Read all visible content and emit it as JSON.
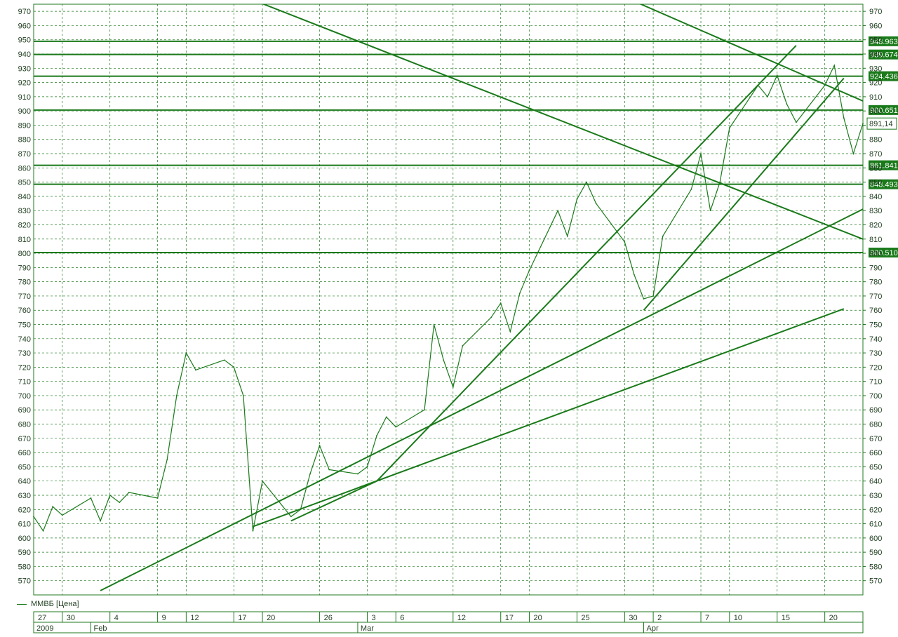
{
  "chart_data": {
    "type": "line",
    "title": "",
    "series": [
      {
        "name": "ММВБ [Цена]",
        "color": "#1a7a1a",
        "points": [
          [
            "2009-01-27",
            615
          ],
          [
            "2009-01-28",
            605
          ],
          [
            "2009-01-29",
            622
          ],
          [
            "2009-01-30",
            616
          ],
          [
            "2009-02-02",
            628
          ],
          [
            "2009-02-03",
            612
          ],
          [
            "2009-02-04",
            630
          ],
          [
            "2009-02-05",
            625
          ],
          [
            "2009-02-06",
            632
          ],
          [
            "2009-02-09",
            628
          ],
          [
            "2009-02-10",
            655
          ],
          [
            "2009-02-11",
            700
          ],
          [
            "2009-02-12",
            730
          ],
          [
            "2009-02-13",
            718
          ],
          [
            "2009-02-16",
            725
          ],
          [
            "2009-02-17",
            720
          ],
          [
            "2009-02-18",
            700
          ],
          [
            "2009-02-19",
            605
          ],
          [
            "2009-02-20",
            640
          ],
          [
            "2009-02-23",
            615
          ],
          [
            "2009-02-24",
            620
          ],
          [
            "2009-02-25",
            645
          ],
          [
            "2009-02-26",
            665
          ],
          [
            "2009-02-27",
            648
          ],
          [
            "2009-03-02",
            645
          ],
          [
            "2009-03-03",
            650
          ],
          [
            "2009-03-04",
            672
          ],
          [
            "2009-03-05",
            685
          ],
          [
            "2009-03-06",
            678
          ],
          [
            "2009-03-09",
            690
          ],
          [
            "2009-03-10",
            750
          ],
          [
            "2009-03-11",
            725
          ],
          [
            "2009-03-12",
            706
          ],
          [
            "2009-03-13",
            735
          ],
          [
            "2009-03-16",
            755
          ],
          [
            "2009-03-17",
            765
          ],
          [
            "2009-03-18",
            745
          ],
          [
            "2009-03-19",
            772
          ],
          [
            "2009-03-20",
            788
          ],
          [
            "2009-03-23",
            830
          ],
          [
            "2009-03-24",
            812
          ],
          [
            "2009-03-25",
            838
          ],
          [
            "2009-03-26",
            850
          ],
          [
            "2009-03-27",
            835
          ],
          [
            "2009-03-30",
            808
          ],
          [
            "2009-03-31",
            785
          ],
          [
            "2009-04-01",
            768
          ],
          [
            "2009-04-02",
            770
          ],
          [
            "2009-04-03",
            812
          ],
          [
            "2009-04-06",
            845
          ],
          [
            "2009-04-07",
            870
          ],
          [
            "2009-04-08",
            830
          ],
          [
            "2009-04-09",
            850
          ],
          [
            "2009-04-10",
            888
          ],
          [
            "2009-04-13",
            918
          ],
          [
            "2009-04-14",
            910
          ],
          [
            "2009-04-15",
            925
          ],
          [
            "2009-04-16",
            905
          ],
          [
            "2009-04-17",
            892
          ],
          [
            "2009-04-20",
            918
          ],
          [
            "2009-04-21",
            932
          ],
          [
            "2009-04-22",
            895
          ],
          [
            "2009-04-23",
            870
          ],
          [
            "2009-04-24",
            891.14
          ]
        ]
      }
    ],
    "last_price_label": "891,14",
    "trend_lines": [
      [
        [
          "2009-02-03",
          563
        ],
        [
          "2009-04-24",
          831
        ]
      ],
      [
        [
          "2009-02-19",
          608
        ],
        [
          "2009-04-22",
          761
        ]
      ],
      [
        [
          "2009-02-23",
          612
        ],
        [
          "2009-03-04",
          640
        ]
      ],
      [
        [
          "2009-03-04",
          640
        ],
        [
          "2009-04-17",
          946
        ]
      ],
      [
        [
          "2009-02-03",
          1020
        ],
        [
          "2009-04-24",
          810
        ]
      ],
      [
        [
          "2009-03-30",
          980
        ],
        [
          "2009-04-24",
          907
        ]
      ],
      [
        [
          "2009-04-01",
          760
        ],
        [
          "2009-04-22",
          923
        ]
      ]
    ],
    "level_lines": [
      "948.963",
      "939.674",
      "924.436",
      "900.651",
      "861.841",
      "848.493",
      "800.510"
    ],
    "y_axis": {
      "min": 560,
      "max": 975,
      "ticks": [
        570,
        580,
        590,
        600,
        610,
        620,
        630,
        640,
        650,
        660,
        670,
        680,
        690,
        700,
        710,
        720,
        730,
        740,
        750,
        760,
        770,
        780,
        790,
        800,
        810,
        820,
        830,
        840,
        850,
        860,
        870,
        880,
        890,
        900,
        910,
        920,
        930,
        940,
        950,
        960,
        970
      ]
    },
    "x_axis": {
      "start": "2009-01-27",
      "end": "2009-04-24",
      "day_ticks": [
        [
          "2009-01-27",
          "27"
        ],
        [
          "2009-01-30",
          "30"
        ],
        [
          "2009-02-04",
          "4"
        ],
        [
          "2009-02-09",
          "9"
        ],
        [
          "2009-02-12",
          "12"
        ],
        [
          "2009-02-17",
          "17"
        ],
        [
          "2009-02-20",
          "20"
        ],
        [
          "2009-02-26",
          "26"
        ],
        [
          "2009-03-03",
          "3"
        ],
        [
          "2009-03-06",
          "6"
        ],
        [
          "2009-03-12",
          "12"
        ],
        [
          "2009-03-17",
          "17"
        ],
        [
          "2009-03-20",
          "20"
        ],
        [
          "2009-03-25",
          "25"
        ],
        [
          "2009-03-30",
          "30"
        ],
        [
          "2009-04-02",
          "2"
        ],
        [
          "2009-04-07",
          "7"
        ],
        [
          "2009-04-10",
          "10"
        ],
        [
          "2009-04-15",
          "15"
        ],
        [
          "2009-04-20",
          "20"
        ]
      ],
      "period_ticks": [
        [
          "2009-01-27",
          "2009"
        ],
        [
          "2009-02-02",
          "Feb"
        ],
        [
          "2009-03-02",
          "Mar"
        ],
        [
          "2009-04-01",
          "Apr"
        ]
      ]
    },
    "grid": true,
    "grid_style": "dashed",
    "legend": "bottom-left",
    "colors": {
      "line": "#1a7a1a",
      "grid": "#1f7a1f",
      "level_label_bg": "#1a7a1a",
      "background": "#ffffff"
    }
  }
}
